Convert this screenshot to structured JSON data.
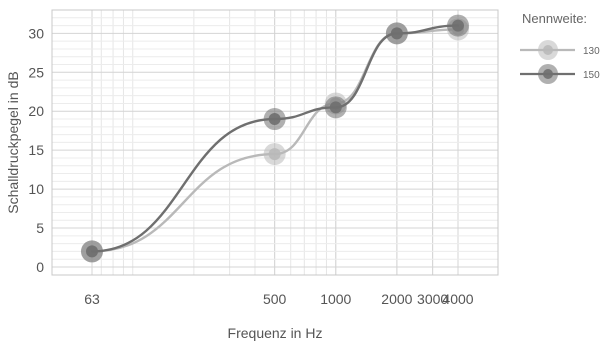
{
  "chart_data": {
    "type": "line",
    "xlabel": "Frequenz in Hz",
    "ylabel": "Schalldruckpegel in dB",
    "x_scale": "log",
    "x": [
      63,
      500,
      1000,
      2000,
      4000
    ],
    "x_tick_labels": [
      "63",
      "500",
      "1000",
      "2000",
      "3000",
      "4000"
    ],
    "x_tick_values": [
      63,
      500,
      1000,
      2000,
      3000,
      4000
    ],
    "y_ticks": [
      0,
      5,
      10,
      15,
      20,
      25,
      30
    ],
    "ylim": [
      0,
      33
    ],
    "grid": true,
    "legend": {
      "title": "Nennweite:",
      "position": "right"
    },
    "series": [
      {
        "name": "130",
        "color": "#b9b9b9",
        "values": [
          2,
          14.5,
          21,
          30,
          30.5
        ]
      },
      {
        "name": "150",
        "color": "#6f6f6f",
        "values": [
          2,
          19,
          20.5,
          30,
          31
        ]
      }
    ]
  }
}
